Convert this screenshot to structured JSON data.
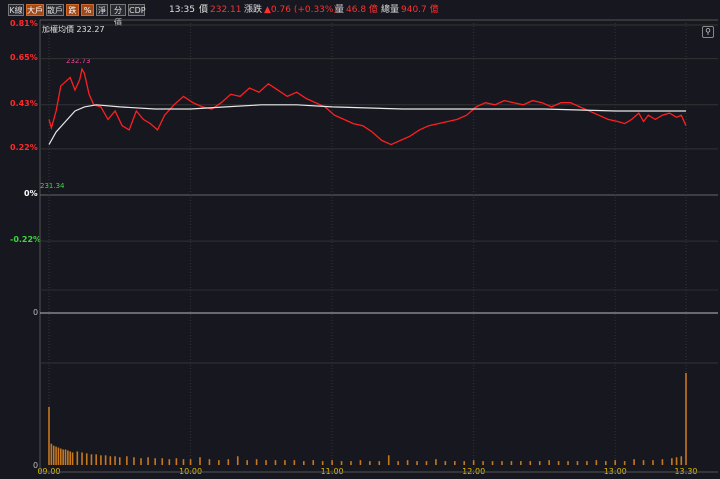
{
  "toolbar": {
    "buttons": [
      {
        "label": "K線",
        "active": false
      },
      {
        "label": "大戶",
        "active": true
      },
      {
        "label": "散戶",
        "active": false
      },
      {
        "label": "跌",
        "active": true
      },
      {
        "label": "%",
        "active": true
      },
      {
        "label": "淨",
        "active": false
      },
      {
        "label": "分價",
        "active": false
      },
      {
        "label": "CDP",
        "active": false
      }
    ]
  },
  "header": {
    "time": "13:35",
    "price_label": "價",
    "price": "232.11",
    "change_label": "漲跌",
    "change": "▲0.76 (+0.33%)",
    "vol_label": "量",
    "vol": "46.8 億",
    "total_vol_label": "總量",
    "total_vol": "940.7 億"
  },
  "legend": {
    "label": "加權均價 232.27"
  },
  "icons": {
    "settings": "link-icon"
  },
  "colors": {
    "price_line": "#ff1f1f",
    "avg_line": "#e8e8e8",
    "volume_bar": "#c8781e",
    "up": "#ff2a2a",
    "down": "#3ad83a"
  },
  "chart_data": {
    "type": "line",
    "ylim": [
      -0.38,
      0.81
    ],
    "yticks": [
      {
        "value": 0.81,
        "label": "0.81%"
      },
      {
        "value": 0.65,
        "label": "0.65%"
      },
      {
        "value": 0.43,
        "label": "0.43%"
      },
      {
        "value": 0.22,
        "label": "0.22%"
      },
      {
        "value": 0.0,
        "label": "0%"
      },
      {
        "value": -0.22,
        "label": "-0.22%"
      }
    ],
    "x_time_range": [
      "09:00",
      "13:30"
    ],
    "xticks": [
      "09:00",
      "10:00",
      "11:00",
      "12:00",
      "13:00",
      "13:30"
    ],
    "annotations": {
      "high": "232.73",
      "low": "231.34"
    },
    "volume_axis_labels": {
      "zero_line": "0",
      "volume_zero": "0"
    },
    "series": [
      {
        "points": [
          [
            "09:00",
            0.36
          ],
          [
            "09:01",
            0.32
          ],
          [
            "09:03",
            0.4
          ],
          [
            "09:05",
            0.52
          ],
          [
            "09:07",
            0.54
          ],
          [
            "09:09",
            0.56
          ],
          [
            "09:11",
            0.5
          ],
          [
            "09:13",
            0.55
          ],
          [
            "09:14",
            0.6
          ],
          [
            "09:15",
            0.58
          ],
          [
            "09:17",
            0.48
          ],
          [
            "09:19",
            0.43
          ],
          [
            "09:22",
            0.42
          ],
          [
            "09:25",
            0.36
          ],
          [
            "09:28",
            0.4
          ],
          [
            "09:31",
            0.33
          ],
          [
            "09:34",
            0.31
          ],
          [
            "09:37",
            0.4
          ],
          [
            "09:40",
            0.36
          ],
          [
            "09:43",
            0.34
          ],
          [
            "09:46",
            0.31
          ],
          [
            "09:49",
            0.38
          ],
          [
            "09:53",
            0.43
          ],
          [
            "09:57",
            0.47
          ],
          [
            "10:01",
            0.44
          ],
          [
            "10:05",
            0.42
          ],
          [
            "10:09",
            0.41
          ],
          [
            "10:13",
            0.44
          ],
          [
            "10:17",
            0.48
          ],
          [
            "10:21",
            0.47
          ],
          [
            "10:25",
            0.51
          ],
          [
            "10:29",
            0.49
          ],
          [
            "10:33",
            0.53
          ],
          [
            "10:37",
            0.5
          ],
          [
            "10:41",
            0.47
          ],
          [
            "10:45",
            0.49
          ],
          [
            "10:49",
            0.46
          ],
          [
            "10:53",
            0.44
          ],
          [
            "10:57",
            0.42
          ],
          [
            "11:01",
            0.38
          ],
          [
            "11:05",
            0.36
          ],
          [
            "11:09",
            0.34
          ],
          [
            "11:13",
            0.33
          ],
          [
            "11:17",
            0.3
          ],
          [
            "11:21",
            0.26
          ],
          [
            "11:25",
            0.24
          ],
          [
            "11:29",
            0.26
          ],
          [
            "11:33",
            0.28
          ],
          [
            "11:37",
            0.31
          ],
          [
            "11:41",
            0.33
          ],
          [
            "11:45",
            0.34
          ],
          [
            "11:49",
            0.35
          ],
          [
            "11:53",
            0.36
          ],
          [
            "11:57",
            0.38
          ],
          [
            "12:01",
            0.42
          ],
          [
            "12:05",
            0.44
          ],
          [
            "12:09",
            0.43
          ],
          [
            "12:13",
            0.45
          ],
          [
            "12:17",
            0.44
          ],
          [
            "12:21",
            0.43
          ],
          [
            "12:25",
            0.45
          ],
          [
            "12:29",
            0.44
          ],
          [
            "12:33",
            0.42
          ],
          [
            "12:37",
            0.44
          ],
          [
            "12:41",
            0.44
          ],
          [
            "12:45",
            0.42
          ],
          [
            "12:49",
            0.4
          ],
          [
            "12:53",
            0.38
          ],
          [
            "12:57",
            0.36
          ],
          [
            "13:01",
            0.35
          ],
          [
            "13:04",
            0.34
          ],
          [
            "13:07",
            0.36
          ],
          [
            "13:10",
            0.39
          ],
          [
            "13:12",
            0.35
          ],
          [
            "13:14",
            0.38
          ],
          [
            "13:17",
            0.36
          ],
          [
            "13:20",
            0.38
          ],
          [
            "13:23",
            0.39
          ],
          [
            "13:26",
            0.37
          ],
          [
            "13:28",
            0.38
          ],
          [
            "13:30",
            0.33
          ]
        ]
      },
      {
        "points": [
          [
            "09:00",
            0.24
          ],
          [
            "09:03",
            0.3
          ],
          [
            "09:07",
            0.35
          ],
          [
            "09:11",
            0.4
          ],
          [
            "09:15",
            0.42
          ],
          [
            "09:20",
            0.43
          ],
          [
            "09:30",
            0.42
          ],
          [
            "09:45",
            0.41
          ],
          [
            "10:00",
            0.41
          ],
          [
            "10:15",
            0.42
          ],
          [
            "10:30",
            0.43
          ],
          [
            "10:45",
            0.43
          ],
          [
            "11:00",
            0.42
          ],
          [
            "11:30",
            0.41
          ],
          [
            "12:00",
            0.41
          ],
          [
            "12:30",
            0.41
          ],
          [
            "13:00",
            0.4
          ],
          [
            "13:30",
            0.4
          ]
        ]
      }
    ],
    "volume_bars": [
      [
        "09:00",
        60
      ],
      [
        "09:01",
        22
      ],
      [
        "09:02",
        20
      ],
      [
        "09:03",
        19
      ],
      [
        "09:04",
        18
      ],
      [
        "09:05",
        17
      ],
      [
        "09:06",
        16
      ],
      [
        "09:07",
        16
      ],
      [
        "09:08",
        15
      ],
      [
        "09:09",
        14
      ],
      [
        "09:10",
        13
      ],
      [
        "09:12",
        14
      ],
      [
        "09:14",
        13
      ],
      [
        "09:16",
        12
      ],
      [
        "09:18",
        11
      ],
      [
        "09:20",
        11
      ],
      [
        "09:22",
        10
      ],
      [
        "09:24",
        10
      ],
      [
        "09:26",
        9
      ],
      [
        "09:28",
        9
      ],
      [
        "09:30",
        8
      ],
      [
        "09:33",
        9
      ],
      [
        "09:36",
        8
      ],
      [
        "09:39",
        7
      ],
      [
        "09:42",
        8
      ],
      [
        "09:45",
        7
      ],
      [
        "09:48",
        7
      ],
      [
        "09:51",
        6
      ],
      [
        "09:54",
        7
      ],
      [
        "09:57",
        6
      ],
      [
        "10:00",
        6
      ],
      [
        "10:04",
        8
      ],
      [
        "10:08",
        6
      ],
      [
        "10:12",
        5
      ],
      [
        "10:16",
        6
      ],
      [
        "10:20",
        9
      ],
      [
        "10:24",
        5
      ],
      [
        "10:28",
        6
      ],
      [
        "10:32",
        5
      ],
      [
        "10:36",
        5
      ],
      [
        "10:40",
        5
      ],
      [
        "10:44",
        5
      ],
      [
        "10:48",
        4
      ],
      [
        "10:52",
        5
      ],
      [
        "10:56",
        4
      ],
      [
        "11:00",
        5
      ],
      [
        "11:04",
        4
      ],
      [
        "11:08",
        4
      ],
      [
        "11:12",
        5
      ],
      [
        "11:16",
        4
      ],
      [
        "11:20",
        4
      ],
      [
        "11:24",
        10
      ],
      [
        "11:28",
        4
      ],
      [
        "11:32",
        5
      ],
      [
        "11:36",
        4
      ],
      [
        "11:40",
        4
      ],
      [
        "11:44",
        6
      ],
      [
        "11:48",
        4
      ],
      [
        "11:52",
        4
      ],
      [
        "11:56",
        4
      ],
      [
        "12:00",
        5
      ],
      [
        "12:04",
        4
      ],
      [
        "12:08",
        4
      ],
      [
        "12:12",
        4
      ],
      [
        "12:16",
        4
      ],
      [
        "12:20",
        4
      ],
      [
        "12:24",
        4
      ],
      [
        "12:28",
        4
      ],
      [
        "12:32",
        5
      ],
      [
        "12:36",
        4
      ],
      [
        "12:40",
        4
      ],
      [
        "12:44",
        4
      ],
      [
        "12:48",
        4
      ],
      [
        "12:52",
        5
      ],
      [
        "12:56",
        4
      ],
      [
        "13:00",
        5
      ],
      [
        "13:04",
        4
      ],
      [
        "13:08",
        6
      ],
      [
        "13:12",
        5
      ],
      [
        "13:16",
        5
      ],
      [
        "13:20",
        6
      ],
      [
        "13:24",
        7
      ],
      [
        "13:26",
        8
      ],
      [
        "13:28",
        9
      ],
      [
        "13:30",
        95
      ]
    ]
  }
}
